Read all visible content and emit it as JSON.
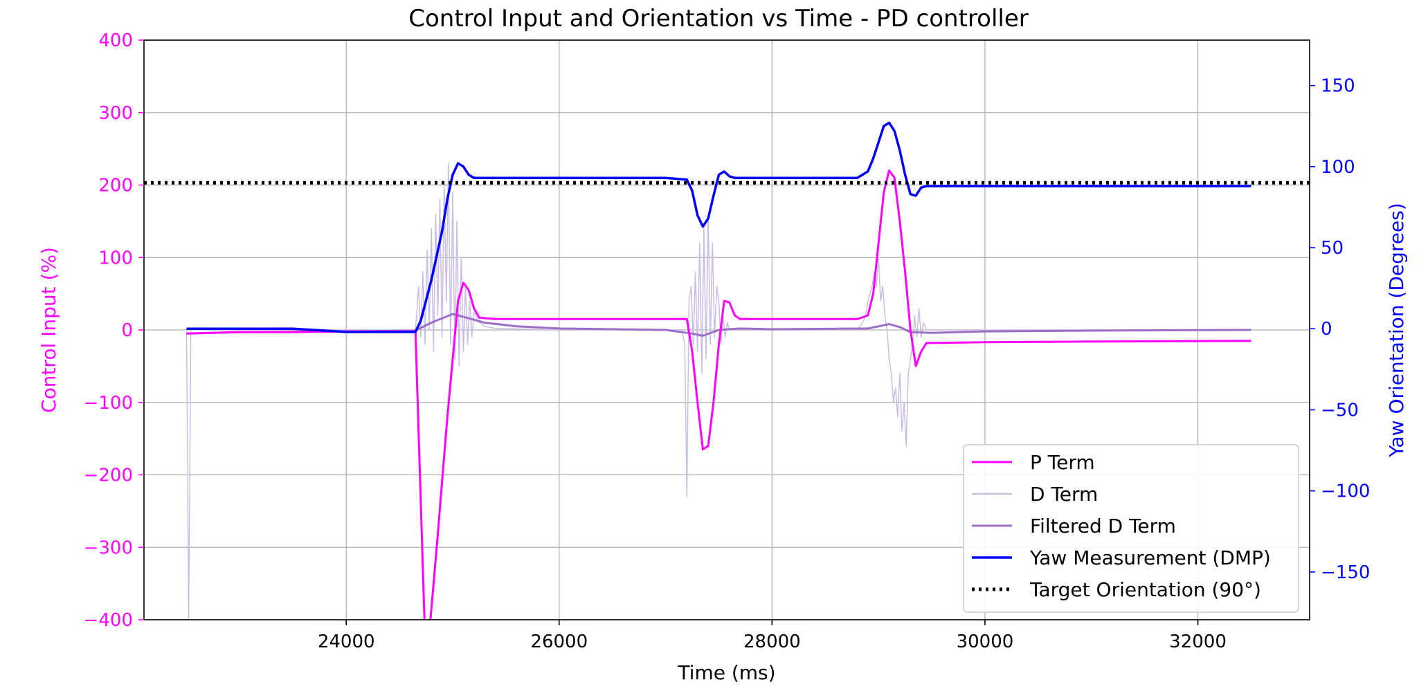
{
  "chart_data": {
    "type": "line",
    "title": "Control Input and Orientation vs Time - PD controller",
    "xlabel": "Time (ms)",
    "ylabel_left": "Control Input (%)",
    "ylabel_right": "Yaw Orientation (Degrees)",
    "xlim": [
      22100,
      33050
    ],
    "ylim_left": [
      -400,
      400
    ],
    "ylim_right": [
      -179.5,
      178
    ],
    "x_ticks": [
      24000,
      26000,
      28000,
      30000,
      32000
    ],
    "x_tick_labels": [
      "24000",
      "26000",
      "28000",
      "30000",
      "32000"
    ],
    "y_left_ticks": [
      -400,
      -300,
      -200,
      -100,
      0,
      100,
      200,
      300,
      400
    ],
    "y_left_tick_labels": [
      "−400",
      "−300",
      "−200",
      "−100",
      "0",
      "100",
      "200",
      "300",
      "400"
    ],
    "y_right_ticks": [
      -150,
      -100,
      -50,
      0,
      50,
      100,
      150
    ],
    "y_right_tick_labels": [
      "−150",
      "−100",
      "−50",
      "0",
      "50",
      "100",
      "150"
    ],
    "grid": true,
    "legend_placement": "lower-right",
    "colors": {
      "left_axis": "#ff00ff",
      "right_axis": "#0000ff",
      "p_term": "#ff00ff",
      "d_term": "#c9bde3",
      "filtered_d": "#9b6fc8",
      "yaw": "#0000ff",
      "target": "#000000",
      "grid": "#b0b0b0"
    },
    "series": [
      {
        "name": "P Term",
        "axis": "left",
        "x": [
          22500,
          23000,
          23500,
          24000,
          24650,
          24750,
          24850,
          24950,
          25000,
          25050,
          25100,
          25150,
          25200,
          25250,
          25400,
          26000,
          27000,
          27200,
          27250,
          27300,
          27350,
          27400,
          27450,
          27500,
          27550,
          27600,
          27650,
          27700,
          28000,
          28800,
          28900,
          28950,
          29000,
          29050,
          29100,
          29150,
          29200,
          29250,
          29300,
          29350,
          29400,
          29450,
          29500,
          30000,
          31000,
          32500
        ],
        "y": [
          -5,
          -3,
          -3,
          -2,
          -2,
          -470,
          -300,
          -120,
          -40,
          40,
          65,
          55,
          30,
          17,
          15,
          15,
          15,
          15,
          -30,
          -100,
          -165,
          -160,
          -100,
          -20,
          40,
          38,
          20,
          15,
          15,
          15,
          20,
          50,
          120,
          190,
          220,
          210,
          150,
          80,
          0,
          -50,
          -30,
          -18,
          -18,
          -17,
          -16,
          -15
        ]
      },
      {
        "name": "D Term",
        "axis": "left",
        "x": [
          22500,
          22520,
          22540,
          22560,
          23000,
          24000,
          24650,
          24680,
          24700,
          24720,
          24740,
          24760,
          24780,
          24800,
          24820,
          24840,
          24860,
          24880,
          24900,
          24920,
          24940,
          24960,
          24980,
          25000,
          25020,
          25040,
          25060,
          25080,
          25100,
          25120,
          25140,
          25160,
          25180,
          25200,
          25250,
          25300,
          25400,
          26000,
          27000,
          27150,
          27180,
          27200,
          27220,
          27240,
          27260,
          27280,
          27300,
          27320,
          27340,
          27360,
          27380,
          27400,
          27420,
          27440,
          27460,
          27480,
          27500,
          27520,
          27540,
          27560,
          27580,
          27600,
          27650,
          27700,
          28000,
          28800,
          28850,
          28880,
          28900,
          28920,
          28940,
          28960,
          28980,
          29000,
          29020,
          29040,
          29060,
          29080,
          29100,
          29120,
          29140,
          29160,
          29180,
          29200,
          29220,
          29240,
          29260,
          29280,
          29300,
          29320,
          29340,
          29360,
          29380,
          29400,
          29420,
          29450,
          29500,
          30000,
          31000,
          32500
        ],
        "y": [
          0,
          -400,
          0,
          0,
          0,
          0,
          0,
          60,
          -10,
          80,
          -20,
          110,
          0,
          140,
          -30,
          160,
          20,
          180,
          -10,
          200,
          40,
          230,
          -20,
          190,
          -40,
          150,
          -50,
          100,
          -30,
          60,
          -20,
          40,
          -10,
          25,
          10,
          5,
          2,
          0,
          0,
          0,
          -20,
          -230,
          40,
          60,
          -20,
          80,
          -30,
          120,
          -60,
          140,
          -40,
          160,
          -20,
          120,
          -10,
          60,
          40,
          -20,
          20,
          -10,
          10,
          0,
          0,
          0,
          0,
          0,
          10,
          20,
          40,
          50,
          60,
          80,
          60,
          100,
          40,
          60,
          20,
          0,
          -40,
          -60,
          -100,
          -80,
          -120,
          -60,
          -140,
          -100,
          -160,
          -60,
          -40,
          -20,
          20,
          -10,
          30,
          -10,
          10,
          0,
          0,
          0,
          0,
          0
        ]
      },
      {
        "name": "Filtered D Term",
        "axis": "left",
        "x": [
          22500,
          23000,
          24000,
          24650,
          24800,
          25000,
          25100,
          25300,
          25600,
          26000,
          27000,
          27250,
          27350,
          27500,
          27700,
          28000,
          28900,
          29000,
          29100,
          29200,
          29300,
          29500,
          30000,
          31000,
          32500
        ],
        "y": [
          -5,
          -3,
          -2,
          -1,
          10,
          22,
          18,
          10,
          5,
          2,
          0,
          -5,
          -8,
          0,
          2,
          1,
          2,
          5,
          8,
          4,
          -3,
          -4,
          -2,
          -1,
          0
        ]
      },
      {
        "name": "Yaw Measurement (DMP)",
        "axis": "right",
        "x": [
          22500,
          23000,
          23500,
          24000,
          24650,
          24700,
          24800,
          24900,
          24950,
          25000,
          25050,
          25100,
          25150,
          25200,
          25300,
          25500,
          26000,
          27000,
          27200,
          27250,
          27300,
          27350,
          27400,
          27450,
          27500,
          27550,
          27600,
          27650,
          27700,
          28000,
          28800,
          28900,
          28950,
          29000,
          29050,
          29100,
          29150,
          29200,
          29250,
          29300,
          29350,
          29400,
          29450,
          30000,
          31000,
          32500
        ],
        "y": [
          0,
          0,
          0,
          -2,
          -2,
          5,
          30,
          60,
          80,
          95,
          102,
          100,
          95,
          93,
          93,
          93,
          93,
          93,
          92,
          85,
          70,
          63,
          68,
          82,
          95,
          97,
          94,
          93,
          93,
          93,
          93,
          97,
          105,
          115,
          125,
          127,
          122,
          110,
          95,
          83,
          82,
          87,
          88,
          88,
          88,
          88
        ]
      },
      {
        "name": "Target Orientation (90°)",
        "axis": "right",
        "style": "dotted",
        "x": [
          22100,
          33050
        ],
        "y": [
          90,
          90
        ]
      }
    ]
  }
}
